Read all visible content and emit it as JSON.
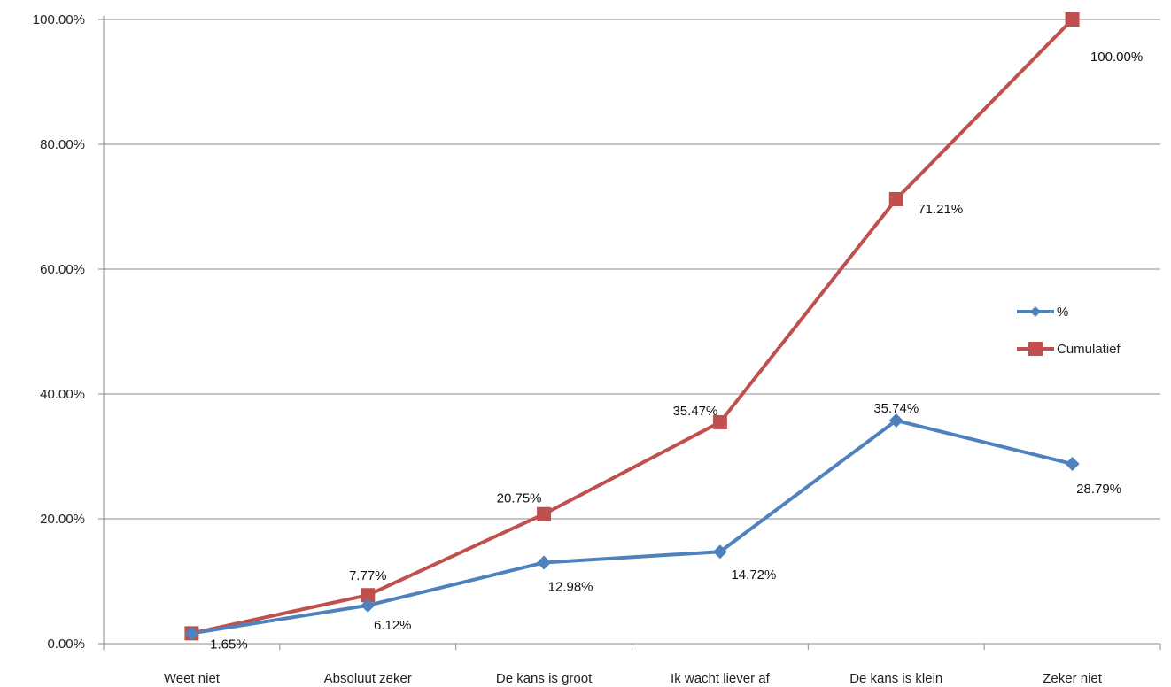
{
  "chart_data": {
    "type": "line",
    "title": "",
    "xlabel": "",
    "ylabel": "",
    "categories": [
      "Weet niet",
      "Absoluut zeker",
      "De kans is groot",
      "Ik wacht liever af",
      "De kans is klein",
      "Zeker niet"
    ],
    "ylim": [
      0,
      100
    ],
    "yticks": [
      "0.00%",
      "20.00%",
      "40.00%",
      "60.00%",
      "80.00%",
      "100.00%"
    ],
    "grid": true,
    "legend_position": "right",
    "series": [
      {
        "name": "%",
        "color": "#4f81bd",
        "marker": "diamond",
        "values": [
          1.65,
          6.12,
          12.98,
          14.72,
          35.74,
          28.79
        ],
        "labels": [
          "",
          "6.12%",
          "12.98%",
          "14.72%",
          "35.74%",
          "28.79%"
        ]
      },
      {
        "name": "Cumulatief",
        "color": "#c0504d",
        "marker": "square",
        "values": [
          1.65,
          7.77,
          20.75,
          35.47,
          71.21,
          100.0
        ],
        "labels": [
          "1.65%",
          "7.77%",
          "20.75%",
          "35.47%",
          "71.21%",
          "100.00%"
        ]
      }
    ]
  }
}
